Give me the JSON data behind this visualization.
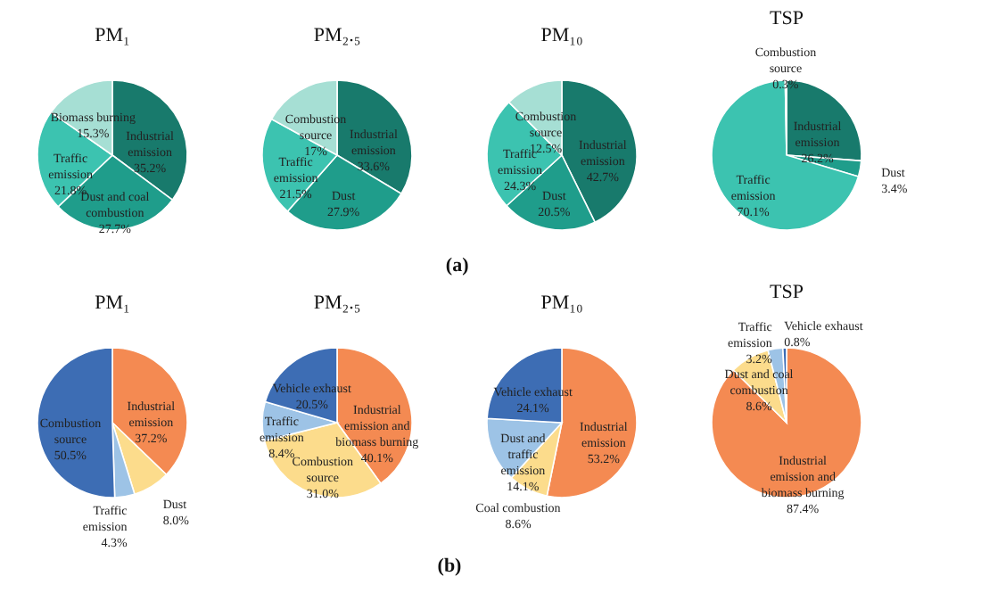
{
  "chart_data": [
    {
      "type": "pie",
      "title": "PM₁",
      "categories": [
        "Industrial emission",
        "Dust and coal combustion",
        "Traffic emission",
        "Biomass burning"
      ],
      "values": [
        35.2,
        27.7,
        21.8,
        15.3
      ],
      "value_labels": [
        "35.2%",
        "27.7%",
        "21.8%",
        "15.3%"
      ],
      "colors": [
        "#187a6c",
        "#1f9d8b",
        "#3cc3b0",
        "#a6dfd4"
      ]
    },
    {
      "type": "pie",
      "title": "PM₂.₅",
      "categories": [
        "Industrial emission",
        "Dust",
        "Traffic emission",
        "Combustion source"
      ],
      "values": [
        33.6,
        27.9,
        21.5,
        17
      ],
      "value_labels": [
        "33.6%",
        "27.9%",
        "21.5%",
        "17%"
      ],
      "colors": [
        "#187a6c",
        "#1f9d8b",
        "#3cc3b0",
        "#a6dfd4"
      ]
    },
    {
      "type": "pie",
      "title": "PM₁₀",
      "categories": [
        "Industrial emission",
        "Dust",
        "Traffic emission",
        "Combustion source"
      ],
      "values": [
        42.7,
        20.5,
        24.3,
        12.5
      ],
      "value_labels": [
        "42.7%",
        "20.5%",
        "24.3%",
        "12.5%"
      ],
      "colors": [
        "#187a6c",
        "#1f9d8b",
        "#3cc3b0",
        "#a6dfd4"
      ],
      "annotations": [
        "(a)"
      ]
    },
    {
      "type": "pie",
      "title": "TSP",
      "categories": [
        "Industrial emission",
        "Dust",
        "Traffic emission",
        "Combustion source"
      ],
      "values": [
        26.2,
        3.4,
        70.1,
        0.3
      ],
      "value_labels": [
        "26.2%",
        "3.4%",
        "70.1%",
        "0.3%"
      ],
      "colors": [
        "#187a6c",
        "#1f9d8b",
        "#3cc3b0",
        "#a6dfd4"
      ]
    },
    {
      "type": "pie",
      "title": "PM₁",
      "categories": [
        "Industrial emission",
        "Dust",
        "Traffic emission",
        "Combustion source"
      ],
      "values": [
        37.2,
        8.0,
        4.3,
        50.5
      ],
      "value_labels": [
        "37.2%",
        "8.0%",
        "4.3%",
        "50.5%"
      ],
      "colors": [
        "#f48a52",
        "#fcdc8c",
        "#9dc3e6",
        "#3d6db4"
      ]
    },
    {
      "type": "pie",
      "title": "PM₂.₅",
      "categories": [
        "Industrial emission and biomass burning",
        "Combustion source",
        "Traffic emission",
        "Vehicle exhaust"
      ],
      "values": [
        40.1,
        31.0,
        8.4,
        20.5
      ],
      "value_labels": [
        "40.1%",
        "31.0%",
        "8.4%",
        "20.5%"
      ],
      "colors": [
        "#f48a52",
        "#fcdc8c",
        "#9dc3e6",
        "#3d6db4"
      ]
    },
    {
      "type": "pie",
      "title": "PM₁₀",
      "categories": [
        "Industrial emission",
        "Coal combustion",
        "Dust and traffic emission",
        "Vehicle exhaust"
      ],
      "values": [
        53.2,
        8.6,
        14.1,
        24.1
      ],
      "value_labels": [
        "53.2%",
        "8.6%",
        "14.1%",
        "24.1%"
      ],
      "colors": [
        "#f48a52",
        "#fcdc8c",
        "#9dc3e6",
        "#3d6db4"
      ],
      "annotations": [
        "(b)"
      ]
    },
    {
      "type": "pie",
      "title": "TSP",
      "categories": [
        "Industrial emission and biomass burning",
        "Dust and coal combustion",
        "Traffic emission",
        "Vehicle exhaust"
      ],
      "values": [
        87.4,
        8.6,
        3.2,
        0.8
      ],
      "value_labels": [
        "87.4%",
        "8.6%",
        "3.2%",
        "0.8%"
      ],
      "colors": [
        "#f48a52",
        "#fcdc8c",
        "#9dc3e6",
        "#3d6db4"
      ]
    }
  ]
}
